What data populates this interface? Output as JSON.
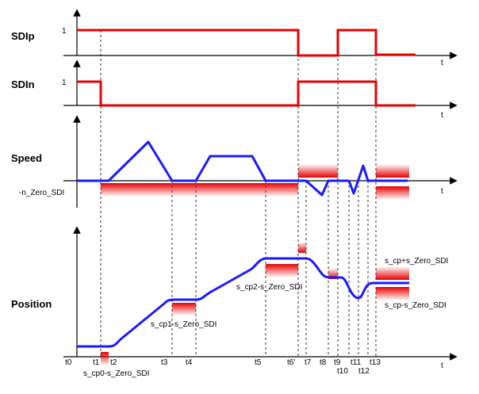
{
  "row_labels": {
    "sdip": "SDIp",
    "sdin": "SDIn",
    "speed": "Speed",
    "position": "Position"
  },
  "one_label": "1",
  "axis_t": "t",
  "speed_threshold": "-n_Zero_SDI",
  "time_ticks": [
    "t0",
    "t1",
    "t2",
    "t3",
    "t4",
    "t5",
    "t6'",
    "t7",
    "t8",
    "t9",
    "t10",
    "t11",
    "t12",
    "t13"
  ],
  "annotations": {
    "cp0": "s_cp0-s_Zero_SDI",
    "cp1": "s_cp1-s_Zero_SDI",
    "cp2": "s_cp2-s_Zero_SDI",
    "cp_plus": "s_cp+s_Zero_SDI",
    "cp_minus": "s_cp-s_Zero_SDI"
  },
  "colors": {
    "signal": "#e60000",
    "curve": "#1a1aff",
    "band": "#e60000"
  }
}
